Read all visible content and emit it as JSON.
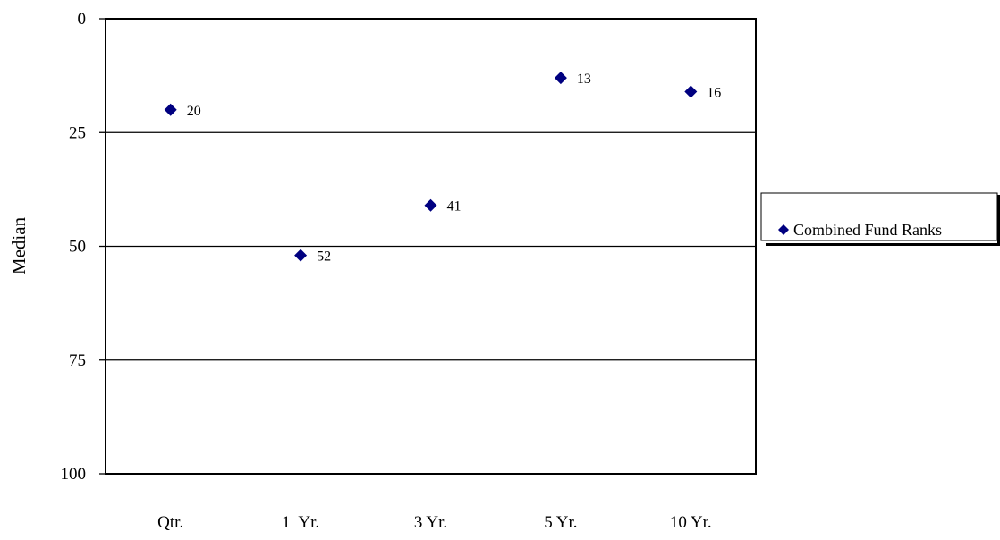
{
  "chart_data": {
    "type": "scatter",
    "title": "",
    "xlabel": "",
    "ylabel": "Median",
    "categories": [
      "Qtr.",
      "1  Yr.",
      "3 Yr.",
      "5 Yr.",
      "10 Yr."
    ],
    "series": [
      {
        "name": "Combined Fund Ranks",
        "values": [
          20,
          52,
          41,
          13,
          16
        ],
        "color": "#000080",
        "marker": "diamond"
      }
    ],
    "data_labels": [
      "20",
      "52",
      "41",
      "13",
      "16"
    ],
    "y_ticks": [
      "0",
      "25",
      "50",
      "75",
      "100"
    ],
    "y_tick_values": [
      0,
      25,
      50,
      75,
      100
    ],
    "ylim": [
      0,
      100
    ],
    "y_reversed": true,
    "grid": "horizontal",
    "legend_position": "right"
  }
}
